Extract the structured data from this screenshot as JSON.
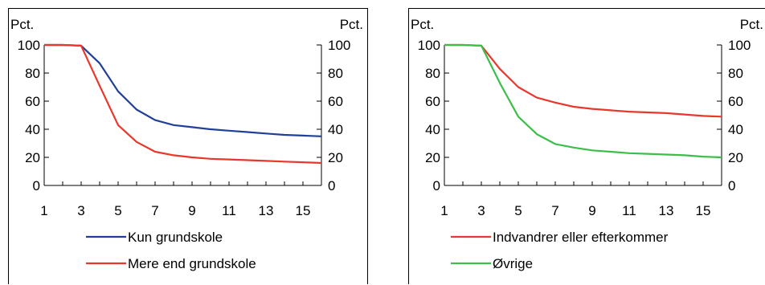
{
  "chart_data": [
    {
      "type": "line",
      "left_axis_label": "Pct.",
      "right_axis_label": "Pct.",
      "x_ticks": [
        "1",
        "3",
        "5",
        "7",
        "9",
        "11",
        "13",
        "15"
      ],
      "y_ticks": [
        "0",
        "20",
        "40",
        "60",
        "80",
        "100"
      ],
      "xlim": [
        1,
        16
      ],
      "ylim": [
        0,
        100
      ],
      "x": [
        1,
        2,
        3,
        4,
        5,
        6,
        7,
        8,
        9,
        10,
        11,
        12,
        13,
        14,
        15,
        16
      ],
      "series": [
        {
          "name": "Kun grundskole",
          "color": "#1f3f99",
          "values": [
            100,
            100,
            99.5,
            87,
            67,
            54,
            46.5,
            43,
            41.5,
            40,
            39,
            38,
            37,
            36,
            35.5,
            35
          ]
        },
        {
          "name": "Mere end grundskole",
          "color": "#e8372c",
          "values": [
            100,
            100,
            99.5,
            71,
            43,
            31,
            24,
            21.5,
            20,
            19,
            18.5,
            18,
            17.5,
            17,
            16.5,
            16
          ]
        }
      ],
      "grid": false,
      "legend_position": "bottom"
    },
    {
      "type": "line",
      "left_axis_label": "Pct.",
      "right_axis_label": "Pct.",
      "x_ticks": [
        "1",
        "3",
        "5",
        "7",
        "9",
        "11",
        "13",
        "15"
      ],
      "y_ticks": [
        "0",
        "20",
        "40",
        "60",
        "80",
        "100"
      ],
      "xlim": [
        1,
        16
      ],
      "ylim": [
        0,
        100
      ],
      "x": [
        1,
        2,
        3,
        4,
        5,
        6,
        7,
        8,
        9,
        10,
        11,
        12,
        13,
        14,
        15,
        16
      ],
      "series": [
        {
          "name": "Indvandrer eller efterkommer",
          "color": "#e8372c",
          "values": [
            100,
            100,
            99.5,
            83,
            70,
            62.5,
            59,
            56,
            54.5,
            53.5,
            52.5,
            52,
            51.5,
            50.5,
            49.5,
            49
          ]
        },
        {
          "name": "Øvrige",
          "color": "#3cbf4a",
          "values": [
            100,
            100,
            99.5,
            73,
            49,
            36.5,
            29.5,
            27,
            25,
            24,
            23,
            22.5,
            22,
            21.5,
            20.5,
            20
          ]
        }
      ],
      "grid": false,
      "legend_position": "bottom"
    }
  ]
}
